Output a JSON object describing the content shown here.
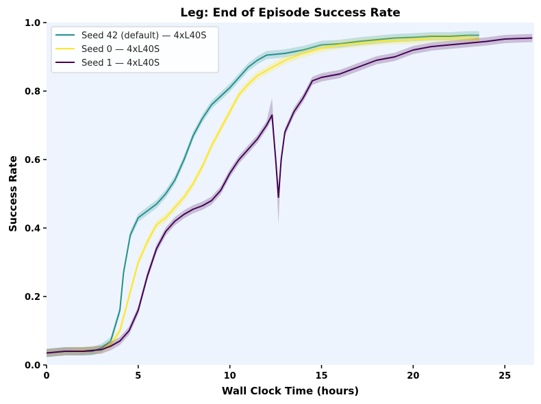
{
  "chart_data": {
    "type": "line",
    "title": "Leg: End of Episode Success Rate",
    "xlabel": "Wall Clock Time (hours)",
    "ylabel": "Success Rate",
    "xlim": [
      0,
      26.6
    ],
    "ylim": [
      0,
      1.0
    ],
    "xticks": [
      0,
      5,
      10,
      15,
      20,
      25
    ],
    "yticks": [
      0.0,
      0.2,
      0.4,
      0.6,
      0.8,
      1.0
    ],
    "ytick_labels": [
      "0.0",
      "0.2",
      "0.4",
      "0.6",
      "0.8",
      "1.0"
    ],
    "background": "#eef4fd",
    "grid": false,
    "legend_position": "top-left",
    "series": [
      {
        "name": "Seed 42 (default) — 4xL40S",
        "color": "#21918c",
        "band_halfwidth": 0.012,
        "x": [
          0,
          1,
          2,
          2.5,
          3,
          3.5,
          4,
          4.2,
          4.57,
          5,
          5.5,
          6,
          6.5,
          7,
          7.5,
          8,
          8.5,
          9,
          9.5,
          10,
          10.5,
          11,
          11.5,
          12,
          13,
          14,
          15,
          16,
          17,
          18,
          19,
          20,
          21,
          22,
          23,
          23.6
        ],
        "y": [
          0.035,
          0.04,
          0.04,
          0.04,
          0.05,
          0.07,
          0.16,
          0.27,
          0.38,
          0.43,
          0.45,
          0.47,
          0.5,
          0.54,
          0.6,
          0.67,
          0.72,
          0.76,
          0.785,
          0.81,
          0.84,
          0.87,
          0.89,
          0.905,
          0.91,
          0.92,
          0.935,
          0.938,
          0.945,
          0.95,
          0.955,
          0.957,
          0.96,
          0.96,
          0.963,
          0.963
        ]
      },
      {
        "name": "Seed 0 — 4xL40S",
        "color": "#fde725",
        "band_halfwidth": 0.012,
        "x": [
          0,
          1,
          2,
          3,
          3.5,
          4,
          4.5,
          5,
          5.5,
          6,
          6.5,
          7,
          7.5,
          8,
          8.5,
          9,
          9.5,
          10,
          10.5,
          11,
          11.5,
          12,
          13,
          14,
          15,
          16,
          17,
          18,
          19,
          20,
          21,
          22,
          23,
          23.6
        ],
        "y": [
          0.035,
          0.04,
          0.042,
          0.045,
          0.06,
          0.1,
          0.2,
          0.3,
          0.36,
          0.41,
          0.43,
          0.46,
          0.49,
          0.53,
          0.58,
          0.64,
          0.69,
          0.74,
          0.79,
          0.82,
          0.845,
          0.86,
          0.89,
          0.91,
          0.925,
          0.935,
          0.94,
          0.945,
          0.948,
          0.95,
          0.955,
          0.955,
          0.955,
          0.952
        ]
      },
      {
        "name": "Seed 1 — 4xL40S",
        "color": "#440154",
        "band_halfwidth": 0.012,
        "band_peaks": [
          {
            "x": 12.3,
            "upper": 0.78
          },
          {
            "x": 12.65,
            "lower": 0.41
          }
        ],
        "x": [
          0,
          1,
          2,
          3,
          3.5,
          4,
          4.5,
          5,
          5.5,
          6,
          6.5,
          7,
          7.5,
          8,
          8.5,
          9,
          9.5,
          10,
          10.5,
          11,
          11.5,
          12,
          12.3,
          12.5,
          12.65,
          12.8,
          13,
          13.5,
          14,
          14.5,
          15,
          16,
          17,
          18,
          19,
          20,
          21,
          22,
          23,
          24,
          25,
          26.5
        ],
        "y": [
          0.035,
          0.04,
          0.04,
          0.045,
          0.055,
          0.07,
          0.1,
          0.16,
          0.26,
          0.34,
          0.39,
          0.42,
          0.44,
          0.455,
          0.465,
          0.48,
          0.51,
          0.56,
          0.6,
          0.63,
          0.66,
          0.7,
          0.73,
          0.6,
          0.49,
          0.6,
          0.68,
          0.74,
          0.78,
          0.83,
          0.84,
          0.85,
          0.87,
          0.89,
          0.9,
          0.92,
          0.93,
          0.935,
          0.94,
          0.945,
          0.952,
          0.955
        ]
      }
    ]
  }
}
